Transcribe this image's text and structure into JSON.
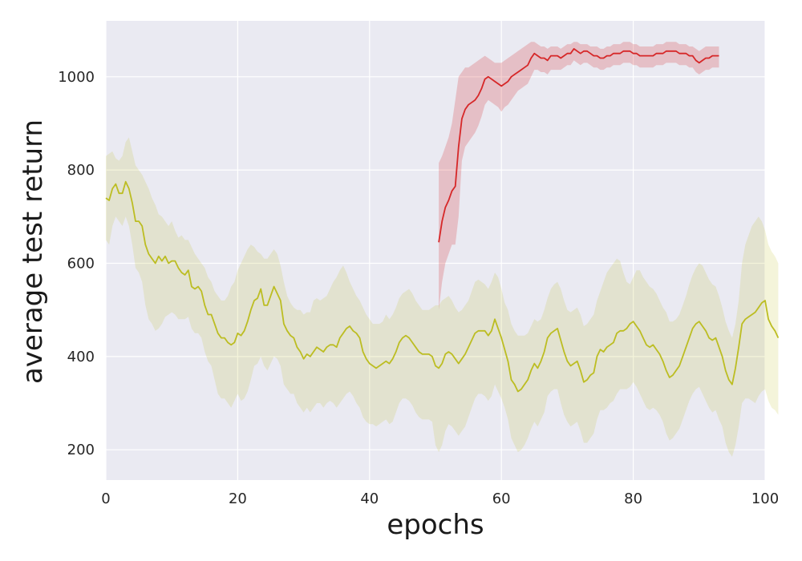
{
  "chart_data": {
    "type": "line",
    "title": "",
    "xlabel": "epochs",
    "ylabel": "average test return",
    "xlim": [
      0,
      100
    ],
    "ylim": [
      135,
      1120
    ],
    "x_ticks": [
      0,
      20,
      40,
      60,
      80,
      100
    ],
    "y_ticks": [
      200,
      400,
      600,
      800,
      1000
    ],
    "grid": true,
    "background": "#eaeaf2",
    "grid_color": "#ffffff",
    "series": [
      {
        "color": "#bcbd22",
        "band_color": "#bcbd22",
        "x_start": 0,
        "x_step": 0.5,
        "mean": [
          740,
          735,
          760,
          770,
          750,
          750,
          775,
          760,
          730,
          690,
          690,
          680,
          640,
          620,
          610,
          600,
          615,
          605,
          615,
          600,
          605,
          605,
          590,
          580,
          575,
          585,
          550,
          545,
          550,
          540,
          510,
          490,
          490,
          470,
          450,
          440,
          440,
          430,
          425,
          430,
          450,
          445,
          455,
          475,
          500,
          520,
          525,
          545,
          510,
          510,
          530,
          550,
          535,
          520,
          470,
          455,
          445,
          440,
          420,
          410,
          395,
          405,
          400,
          410,
          420,
          415,
          410,
          420,
          425,
          425,
          420,
          440,
          450,
          460,
          465,
          455,
          450,
          440,
          410,
          395,
          385,
          380,
          375,
          380,
          385,
          390,
          385,
          395,
          410,
          430,
          440,
          445,
          440,
          430,
          420,
          410,
          405,
          405,
          405,
          400,
          380,
          375,
          385,
          405,
          410,
          405,
          395,
          385,
          395,
          405,
          420,
          435,
          450,
          455,
          455,
          455,
          445,
          455,
          480,
          460,
          440,
          415,
          390,
          350,
          340,
          325,
          330,
          340,
          350,
          370,
          385,
          375,
          390,
          410,
          440,
          450,
          455,
          460,
          435,
          410,
          390,
          380,
          385,
          390,
          370,
          345,
          350,
          360,
          365,
          400,
          415,
          410,
          420,
          425,
          430,
          450,
          455,
          455,
          460,
          470,
          475,
          465,
          455,
          440,
          425,
          420,
          425,
          415,
          405,
          390,
          370,
          355,
          360,
          370,
          380,
          400,
          420,
          440,
          460,
          470,
          475,
          465,
          455,
          440,
          435,
          440,
          420,
          400,
          370,
          350,
          340,
          375,
          420,
          470,
          480,
          485,
          490,
          495,
          505,
          515,
          520,
          480,
          465,
          455,
          440
        ],
        "upper": [
          830,
          835,
          840,
          825,
          820,
          830,
          860,
          870,
          840,
          810,
          800,
          790,
          775,
          760,
          740,
          725,
          705,
          700,
          690,
          680,
          690,
          670,
          655,
          660,
          650,
          650,
          635,
          620,
          610,
          600,
          590,
          570,
          560,
          540,
          530,
          520,
          520,
          530,
          550,
          560,
          585,
          600,
          615,
          630,
          640,
          635,
          625,
          620,
          610,
          610,
          620,
          630,
          620,
          595,
          560,
          530,
          515,
          505,
          500,
          500,
          490,
          495,
          495,
          520,
          525,
          520,
          525,
          530,
          545,
          560,
          570,
          585,
          595,
          580,
          560,
          545,
          530,
          520,
          505,
          490,
          480,
          470,
          470,
          470,
          475,
          490,
          480,
          490,
          505,
          525,
          535,
          540,
          545,
          535,
          520,
          510,
          500,
          500,
          500,
          505,
          510,
          510,
          520,
          525,
          530,
          520,
          505,
          495,
          500,
          510,
          520,
          540,
          560,
          565,
          560,
          555,
          545,
          560,
          580,
          570,
          545,
          515,
          500,
          470,
          455,
          445,
          445,
          445,
          450,
          465,
          480,
          475,
          480,
          500,
          525,
          545,
          555,
          560,
          545,
          520,
          500,
          495,
          500,
          505,
          490,
          465,
          470,
          480,
          490,
          520,
          540,
          560,
          580,
          590,
          600,
          610,
          605,
          580,
          560,
          555,
          570,
          585,
          585,
          570,
          560,
          550,
          545,
          535,
          520,
          505,
          495,
          475,
          475,
          480,
          490,
          510,
          530,
          555,
          575,
          590,
          600,
          595,
          580,
          565,
          555,
          550,
          530,
          505,
          475,
          455,
          440,
          470,
          520,
          600,
          640,
          660,
          680,
          690,
          700,
          690,
          670,
          640,
          625,
          615,
          600
        ],
        "lower": [
          650,
          640,
          680,
          700,
          690,
          680,
          700,
          680,
          640,
          590,
          580,
          560,
          510,
          480,
          470,
          455,
          460,
          470,
          485,
          490,
          495,
          490,
          480,
          480,
          480,
          485,
          460,
          450,
          450,
          440,
          410,
          390,
          380,
          350,
          320,
          310,
          310,
          300,
          290,
          305,
          320,
          305,
          310,
          325,
          350,
          380,
          385,
          400,
          380,
          370,
          385,
          400,
          395,
          380,
          340,
          330,
          320,
          320,
          300,
          290,
          280,
          290,
          280,
          290,
          300,
          300,
          290,
          300,
          305,
          300,
          290,
          300,
          310,
          320,
          325,
          315,
          300,
          290,
          270,
          260,
          255,
          255,
          250,
          255,
          260,
          265,
          255,
          260,
          280,
          300,
          310,
          310,
          305,
          295,
          280,
          270,
          265,
          265,
          265,
          260,
          210,
          195,
          210,
          240,
          255,
          250,
          240,
          230,
          240,
          250,
          270,
          290,
          310,
          320,
          320,
          315,
          305,
          315,
          340,
          325,
          310,
          290,
          265,
          225,
          210,
          195,
          200,
          210,
          225,
          245,
          260,
          250,
          265,
          280,
          315,
          325,
          330,
          330,
          300,
          275,
          260,
          250,
          255,
          260,
          240,
          215,
          215,
          225,
          235,
          265,
          285,
          285,
          290,
          300,
          305,
          320,
          330,
          330,
          330,
          335,
          345,
          335,
          320,
          305,
          290,
          285,
          290,
          285,
          275,
          260,
          235,
          220,
          225,
          235,
          245,
          265,
          285,
          305,
          320,
          330,
          335,
          320,
          305,
          290,
          280,
          285,
          265,
          250,
          215,
          195,
          185,
          210,
          250,
          300,
          310,
          310,
          305,
          300,
          315,
          325,
          330,
          305,
          290,
          285,
          275
        ]
      },
      {
        "color": "#d62728",
        "band_color": "#d62728",
        "x_start": 50.5,
        "x_step": 0.5,
        "mean": [
          645,
          690,
          720,
          735,
          755,
          765,
          850,
          910,
          930,
          940,
          945,
          950,
          960,
          975,
          995,
          1000,
          995,
          990,
          985,
          980,
          985,
          990,
          1000,
          1005,
          1010,
          1015,
          1020,
          1025,
          1040,
          1050,
          1045,
          1040,
          1040,
          1035,
          1045,
          1045,
          1045,
          1040,
          1045,
          1050,
          1050,
          1060,
          1055,
          1050,
          1055,
          1055,
          1050,
          1045,
          1045,
          1040,
          1040,
          1045,
          1045,
          1050,
          1050,
          1050,
          1055,
          1055,
          1055,
          1050,
          1050,
          1045,
          1045,
          1045,
          1045,
          1045,
          1050,
          1050,
          1050,
          1055,
          1055,
          1055,
          1055,
          1050,
          1050,
          1050,
          1045,
          1045,
          1035,
          1030,
          1035,
          1040,
          1040,
          1045,
          1045,
          1045
        ],
        "upper": [
          815,
          830,
          850,
          870,
          900,
          950,
          1000,
          1010,
          1020,
          1020,
          1025,
          1030,
          1035,
          1040,
          1045,
          1040,
          1035,
          1030,
          1030,
          1030,
          1035,
          1040,
          1045,
          1050,
          1055,
          1060,
          1065,
          1070,
          1075,
          1075,
          1070,
          1065,
          1065,
          1060,
          1065,
          1065,
          1065,
          1060,
          1065,
          1070,
          1070,
          1075,
          1075,
          1070,
          1070,
          1070,
          1065,
          1065,
          1065,
          1060,
          1060,
          1065,
          1065,
          1070,
          1070,
          1070,
          1075,
          1075,
          1075,
          1070,
          1070,
          1065,
          1065,
          1065,
          1065,
          1065,
          1070,
          1070,
          1070,
          1075,
          1075,
          1075,
          1075,
          1070,
          1070,
          1070,
          1065,
          1065,
          1060,
          1055,
          1060,
          1065,
          1065,
          1065,
          1065,
          1065
        ],
        "lower": [
          500,
          560,
          600,
          620,
          640,
          640,
          700,
          820,
          850,
          860,
          870,
          880,
          895,
          915,
          940,
          950,
          945,
          940,
          935,
          925,
          935,
          940,
          950,
          960,
          970,
          975,
          980,
          985,
          1000,
          1015,
          1015,
          1010,
          1010,
          1005,
          1015,
          1015,
          1015,
          1015,
          1020,
          1025,
          1025,
          1035,
          1030,
          1025,
          1030,
          1030,
          1025,
          1020,
          1020,
          1015,
          1015,
          1020,
          1020,
          1025,
          1025,
          1025,
          1030,
          1030,
          1030,
          1025,
          1025,
          1020,
          1020,
          1020,
          1020,
          1020,
          1025,
          1025,
          1025,
          1030,
          1030,
          1030,
          1030,
          1025,
          1025,
          1025,
          1020,
          1020,
          1010,
          1005,
          1010,
          1015,
          1015,
          1020,
          1020,
          1020
        ]
      }
    ]
  }
}
